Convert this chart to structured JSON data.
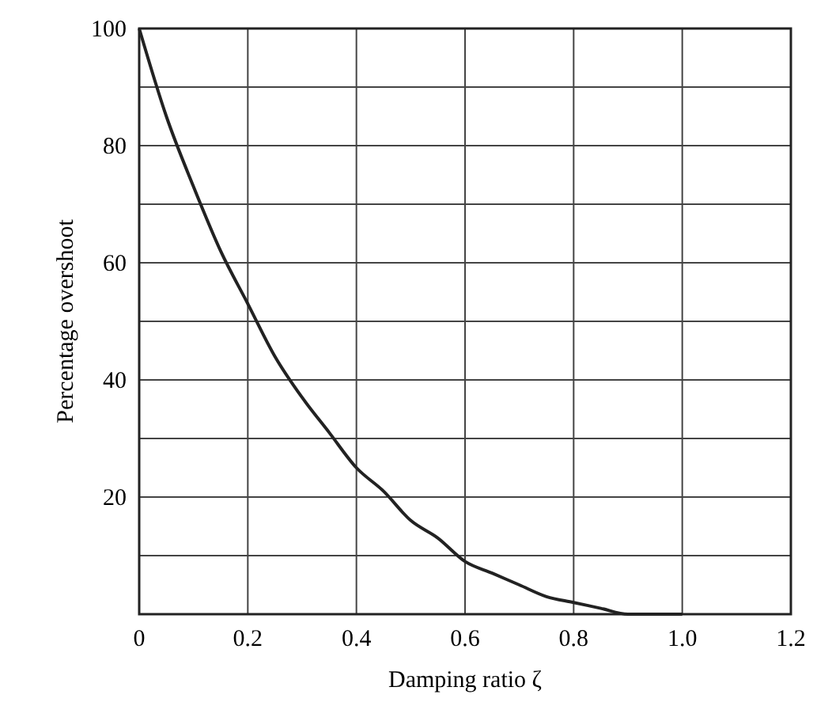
{
  "chart_data": {
    "type": "line",
    "xlabel": "Damping ratio ζ",
    "ylabel": "Percentage overshoot",
    "x": [
      0,
      0.05,
      0.1,
      0.15,
      0.2,
      0.25,
      0.3,
      0.35,
      0.4,
      0.45,
      0.5,
      0.55,
      0.6,
      0.65,
      0.7,
      0.75,
      0.8,
      0.85,
      0.9,
      0.95,
      1.0
    ],
    "series": [
      {
        "color": "#222222",
        "values": [
          100,
          85,
          73,
          62,
          53,
          44,
          37,
          31,
          25,
          21,
          16,
          13,
          9,
          7,
          5,
          3,
          2,
          1,
          0,
          0,
          0
        ]
      }
    ],
    "xlim": [
      0,
      1.2
    ],
    "ylim": [
      0,
      100
    ],
    "xticks": [
      0,
      0.2,
      0.4,
      0.6,
      0.8,
      {
        "value": 1,
        "label": "1.0"
      },
      1.2
    ],
    "yticks": [
      {
        "value": 0,
        "label": null
      },
      {
        "value": 10,
        "label": null
      },
      20,
      {
        "value": 30,
        "label": null
      },
      40,
      {
        "value": 50,
        "label": null
      },
      60,
      {
        "value": 70,
        "label": null
      },
      80,
      {
        "value": 90,
        "label": null
      },
      100
    ],
    "grid": true,
    "marker": "none",
    "line_style": "solid"
  }
}
